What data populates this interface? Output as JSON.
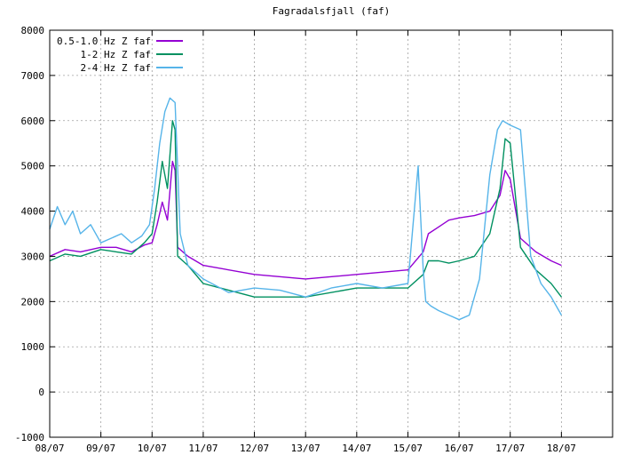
{
  "chart_data": {
    "type": "line",
    "title": "Fagradalsfjall (faf)",
    "xlabel": "",
    "ylabel": "",
    "x_tick_labels": [
      "08/07",
      "09/07",
      "10/07",
      "11/07",
      "12/07",
      "13/07",
      "14/07",
      "15/07",
      "16/07",
      "17/07",
      "18/07"
    ],
    "xlim": [
      "08/07",
      "19/07"
    ],
    "ylim": [
      -1000,
      8000
    ],
    "y_ticks": [
      -1000,
      0,
      1000,
      2000,
      3000,
      4000,
      5000,
      6000,
      7000,
      8000
    ],
    "grid": true,
    "legend_position": "top-left",
    "series": [
      {
        "name": "0.5-1.0 Hz Z faf",
        "color": "#9400d3",
        "x": [
          0.0,
          0.3,
          0.6,
          1.0,
          1.3,
          1.6,
          1.85,
          2.0,
          2.1,
          2.2,
          2.3,
          2.4,
          2.45,
          2.5,
          2.7,
          3.0,
          4.0,
          5.0,
          6.0,
          7.0,
          7.3,
          7.4,
          7.6,
          7.8,
          8.0,
          8.3,
          8.6,
          8.8,
          8.9,
          9.0,
          9.2,
          9.5,
          9.8,
          10.0
        ],
        "values": [
          3000,
          3150,
          3100,
          3200,
          3200,
          3100,
          3250,
          3300,
          3700,
          4200,
          3800,
          5100,
          4900,
          3200,
          3000,
          2800,
          2600,
          2500,
          2600,
          2700,
          3100,
          3500,
          3650,
          3800,
          3850,
          3900,
          4000,
          4350,
          4900,
          4700,
          3400,
          3100,
          2900,
          2800
        ]
      },
      {
        "name": "1-2 Hz Z faf",
        "color": "#009060",
        "x": [
          0.0,
          0.3,
          0.6,
          1.0,
          1.3,
          1.6,
          1.85,
          2.0,
          2.1,
          2.2,
          2.3,
          2.4,
          2.45,
          2.5,
          2.7,
          3.0,
          4.0,
          5.0,
          6.0,
          7.0,
          7.3,
          7.4,
          7.6,
          7.8,
          8.0,
          8.3,
          8.6,
          8.8,
          8.9,
          9.0,
          9.2,
          9.5,
          9.8,
          10.0
        ],
        "values": [
          2900,
          3050,
          3000,
          3150,
          3100,
          3050,
          3300,
          3500,
          4200,
          5100,
          4500,
          6000,
          5800,
          3000,
          2800,
          2400,
          2100,
          2100,
          2300,
          2300,
          2600,
          2900,
          2900,
          2850,
          2900,
          3000,
          3500,
          4500,
          5600,
          5500,
          3200,
          2700,
          2400,
          2100
        ]
      },
      {
        "name": "2-4 Hz Z faf",
        "color": "#56b4e9",
        "x": [
          0.0,
          0.15,
          0.3,
          0.45,
          0.6,
          0.8,
          1.0,
          1.2,
          1.4,
          1.6,
          1.8,
          1.95,
          2.05,
          2.15,
          2.25,
          2.35,
          2.45,
          2.55,
          2.7,
          3.0,
          3.5,
          4.0,
          4.5,
          5.0,
          5.5,
          6.0,
          6.5,
          7.0,
          7.2,
          7.3,
          7.35,
          7.45,
          7.6,
          7.8,
          8.0,
          8.2,
          8.4,
          8.6,
          8.75,
          8.85,
          9.0,
          9.2,
          9.4,
          9.6,
          9.8,
          10.0
        ],
        "values": [
          3600,
          4100,
          3700,
          4000,
          3500,
          3700,
          3300,
          3400,
          3500,
          3300,
          3450,
          3700,
          4500,
          5500,
          6200,
          6500,
          6400,
          3500,
          2800,
          2500,
          2200,
          2300,
          2250,
          2100,
          2300,
          2400,
          2300,
          2400,
          5000,
          2700,
          2000,
          1900,
          1800,
          1700,
          1600,
          1700,
          2500,
          4800,
          5800,
          6000,
          5900,
          5800,
          3000,
          2400,
          2100,
          1700
        ]
      }
    ]
  }
}
